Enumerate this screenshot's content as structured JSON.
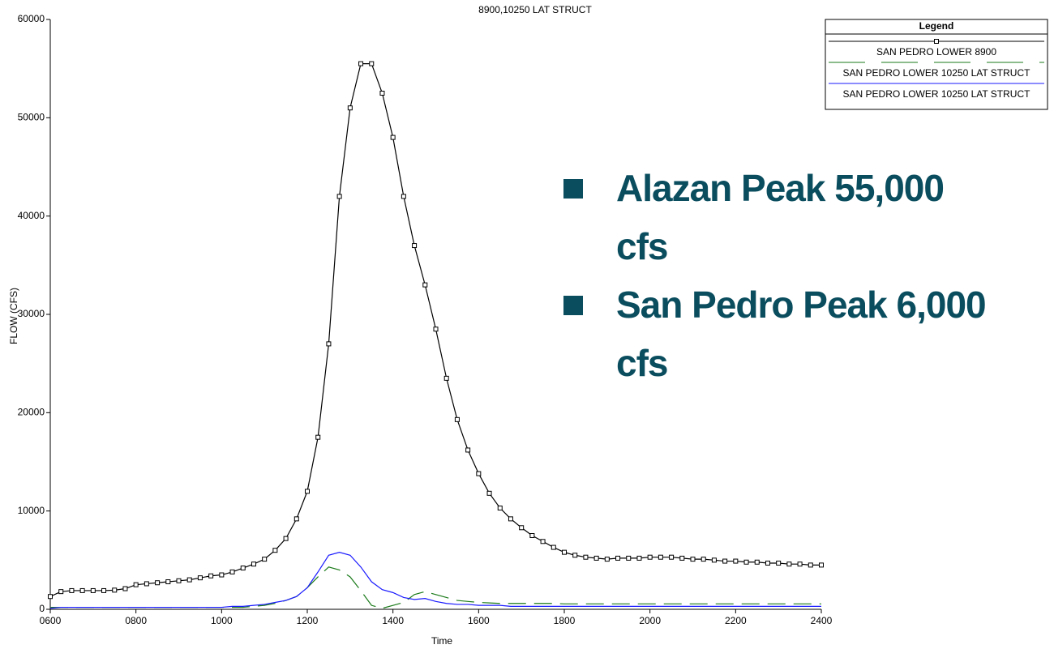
{
  "chart_data": {
    "type": "line",
    "title": "8900,10250 LAT STRUCT",
    "xlabel": "Time",
    "ylabel": "FLOW (CFS)",
    "x": [
      6,
      6.25,
      6.5,
      6.75,
      7,
      7.25,
      7.5,
      7.75,
      8,
      8.25,
      8.5,
      8.75,
      9,
      9.25,
      9.5,
      9.75,
      10,
      10.25,
      10.5,
      10.75,
      11,
      11.25,
      11.5,
      11.75,
      12,
      12.25,
      12.5,
      12.75,
      13,
      13.25,
      13.5,
      13.75,
      14,
      14.25,
      14.5,
      14.75,
      15,
      15.25,
      15.5,
      15.75,
      16,
      16.25,
      16.5,
      16.75,
      17,
      17.25,
      17.5,
      17.75,
      18,
      18.25,
      18.5,
      18.75,
      19,
      19.25,
      19.5,
      19.75,
      20,
      20.25,
      20.5,
      20.75,
      21,
      21.25,
      21.5,
      21.75,
      22,
      22.25,
      22.5,
      22.75,
      23,
      23.25,
      23.5,
      23.75,
      24
    ],
    "series": [
      {
        "name": "SAN PEDRO LOWER 8900",
        "color": "#000000",
        "dash": false,
        "marker": "square",
        "values": [
          1300,
          1800,
          1900,
          1900,
          1900,
          1900,
          1950,
          2100,
          2500,
          2600,
          2700,
          2800,
          2900,
          3000,
          3200,
          3400,
          3500,
          3800,
          4200,
          4600,
          5100,
          6000,
          7200,
          9200,
          12000,
          17500,
          27000,
          42000,
          51000,
          55500,
          55500,
          52500,
          48000,
          42000,
          37000,
          33000,
          28500,
          23500,
          19300,
          16200,
          13800,
          11800,
          10300,
          9200,
          8300,
          7500,
          6900,
          6300,
          5800,
          5500,
          5300,
          5200,
          5100,
          5200,
          5200,
          5200,
          5300,
          5300,
          5300,
          5200,
          5100,
          5100,
          5000,
          4900,
          4900,
          4800,
          4800,
          4700,
          4700,
          4600,
          4600,
          4500,
          4500
        ]
      },
      {
        "name": "SAN PEDRO LOWER 10250 LAT STRUCT",
        "color": "#1a7a1a",
        "dash": true,
        "marker": null,
        "values": [
          200,
          200,
          200,
          200,
          200,
          200,
          200,
          200,
          200,
          200,
          200,
          200,
          200,
          200,
          200,
          200,
          200,
          200,
          200,
          300,
          400,
          600,
          900,
          1300,
          2200,
          3300,
          4300,
          4000,
          3300,
          1900,
          400,
          100,
          400,
          700,
          1500,
          1800,
          1500,
          1200,
          900,
          800,
          700,
          650,
          600,
          600,
          600,
          600,
          600,
          600,
          550,
          550,
          550,
          550,
          550,
          550,
          550,
          550,
          550,
          550,
          550,
          550,
          550,
          550,
          550,
          550,
          550,
          550,
          550,
          550,
          550,
          550,
          550,
          550,
          550
        ]
      },
      {
        "name": "SAN PEDRO LOWER 10250 LAT STRUCT",
        "color": "#1a1aff",
        "dash": false,
        "marker": null,
        "values": [
          100,
          200,
          200,
          200,
          200,
          200,
          200,
          200,
          200,
          200,
          200,
          200,
          200,
          200,
          200,
          200,
          200,
          300,
          300,
          400,
          500,
          700,
          900,
          1300,
          2200,
          3800,
          5500,
          5800,
          5500,
          4300,
          2800,
          2000,
          1700,
          1200,
          1000,
          1100,
          800,
          600,
          500,
          500,
          400,
          400,
          400,
          300,
          300,
          300,
          300,
          300,
          300,
          300,
          300,
          300,
          300,
          300,
          300,
          300,
          300,
          300,
          300,
          300,
          300,
          300,
          300,
          300,
          300,
          300,
          300,
          300,
          300,
          300,
          300,
          300,
          300
        ]
      }
    ],
    "xlim": [
      6,
      24
    ],
    "xticks": [
      {
        "value": 6,
        "label": "0600"
      },
      {
        "value": 8,
        "label": "0800"
      },
      {
        "value": 10,
        "label": "1000"
      },
      {
        "value": 12,
        "label": "1200"
      },
      {
        "value": 14,
        "label": "1400"
      },
      {
        "value": 16,
        "label": "1600"
      },
      {
        "value": 18,
        "label": "1800"
      },
      {
        "value": 20,
        "label": "2000"
      },
      {
        "value": 22,
        "label": "2200"
      },
      {
        "value": 24,
        "label": "2400"
      }
    ],
    "ylim": [
      0,
      60000
    ],
    "yticks": [
      0,
      10000,
      20000,
      30000,
      40000,
      50000,
      60000
    ],
    "grid": false,
    "legend": {
      "title": "Legend",
      "position": "top-right"
    },
    "annotations": [
      "Alazan Peak 55,000 cfs",
      "San Pedro Peak 6,000 cfs"
    ]
  }
}
